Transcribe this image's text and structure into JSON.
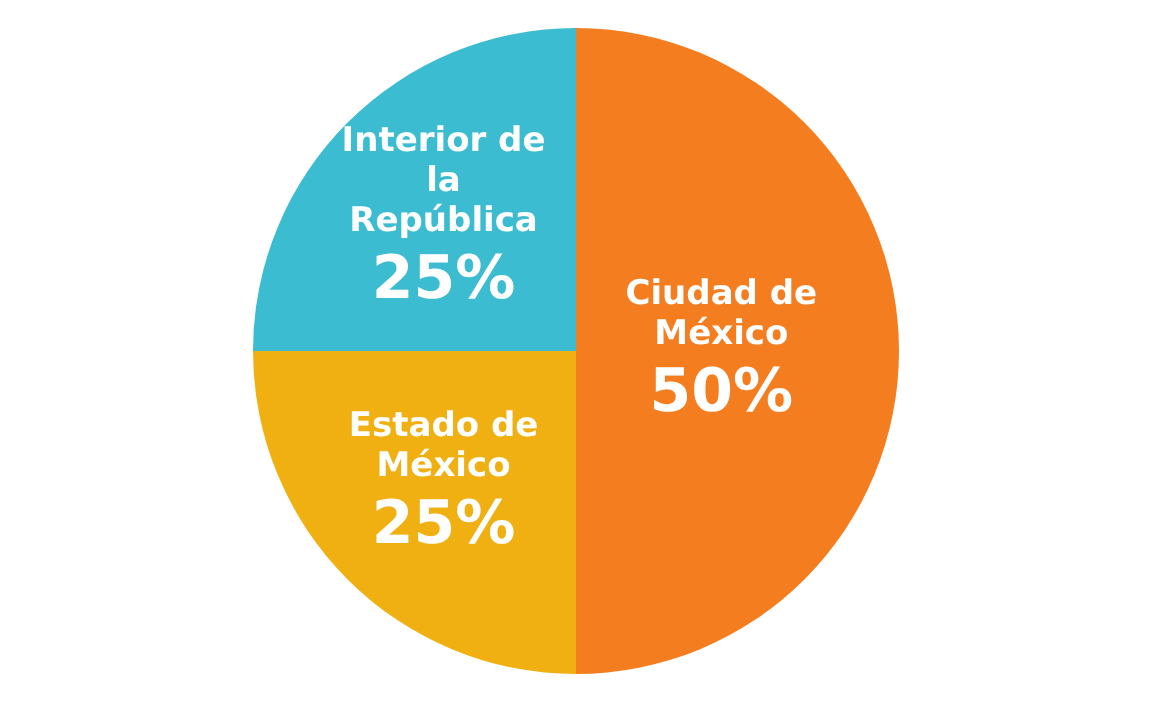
{
  "chart_data": {
    "type": "pie",
    "categories": [
      "Ciudad de México",
      "Estado de México",
      "Interior de la República"
    ],
    "values": [
      50,
      25,
      25
    ],
    "colors": [
      "#f47e1f",
      "#f0b012",
      "#3cbcd0"
    ],
    "value_labels": [
      "50%",
      "25%",
      "25%"
    ],
    "legend": false
  }
}
